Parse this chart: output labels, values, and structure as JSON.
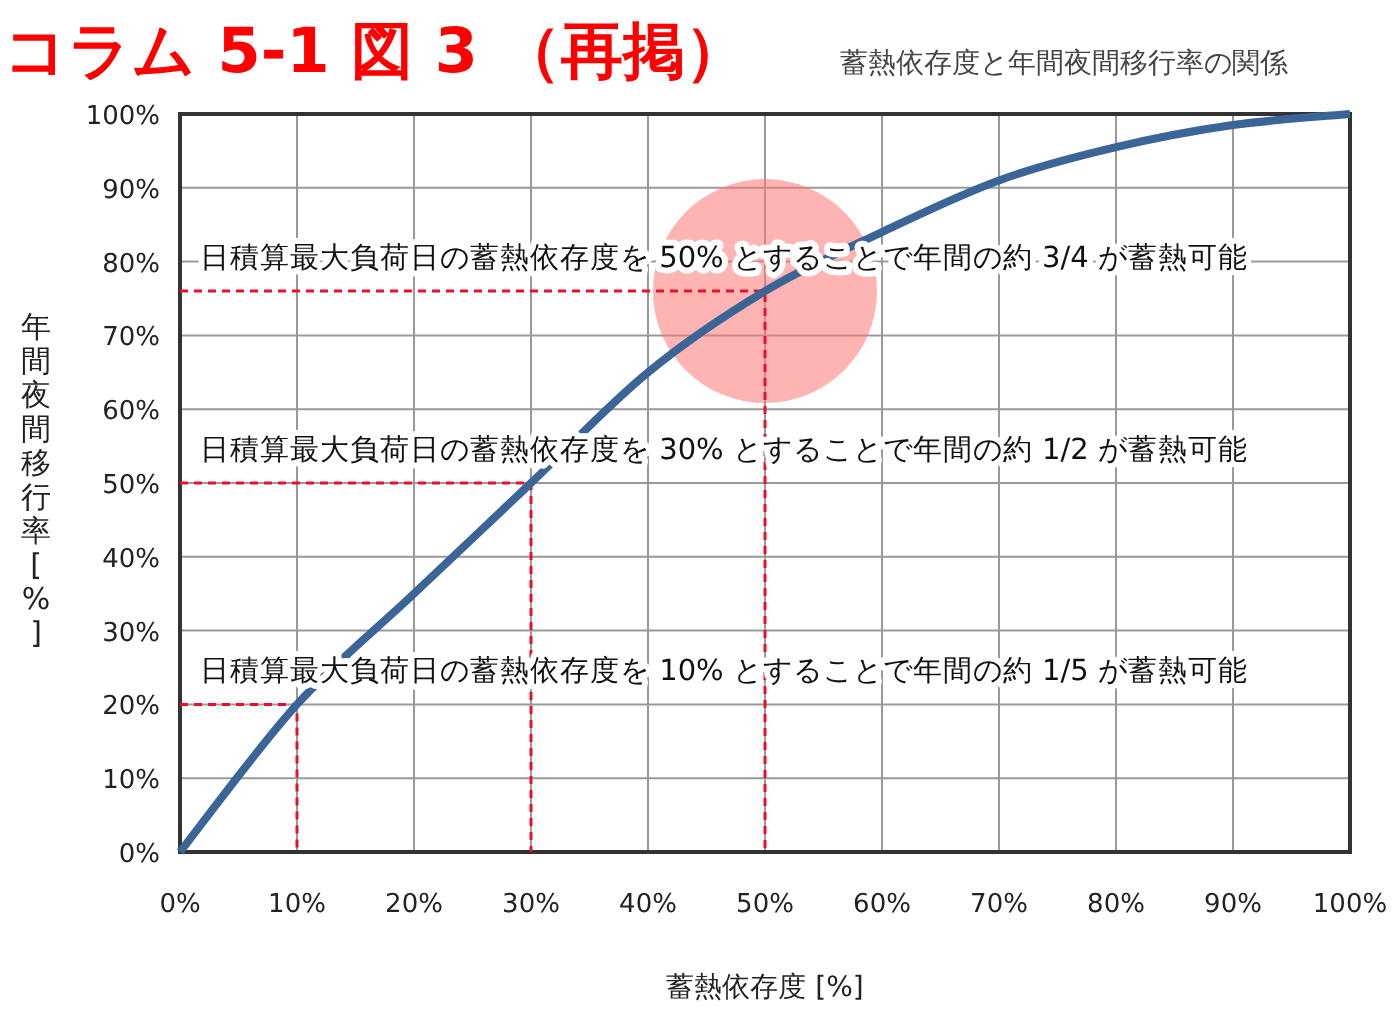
{
  "chart_data": {
    "type": "line",
    "title": "コラム 5-1 図 3 （再掲）",
    "subtitle": "蓄熱依存度と年間夜間移行率の関係",
    "xlabel": "蓄熱依存度 [%]",
    "ylabel": "年間夜間移行率 [%]",
    "x": [
      0,
      10,
      20,
      30,
      40,
      50,
      60,
      70,
      80,
      90,
      100
    ],
    "series": [
      {
        "color": "#3a6596",
        "values": [
          0,
          20,
          35,
          50,
          65,
          76,
          84,
          91,
          95.5,
          98.5,
          100
        ]
      }
    ],
    "xlim": [
      0,
      100
    ],
    "ylim": [
      0,
      100
    ],
    "xticks": [
      {
        "value": 0,
        "label": "0%"
      },
      {
        "value": 10,
        "label": "10%"
      },
      {
        "value": 20,
        "label": "20%"
      },
      {
        "value": 30,
        "label": "30%"
      },
      {
        "value": 40,
        "label": "40%"
      },
      {
        "value": 50,
        "label": "50%"
      },
      {
        "value": 60,
        "label": "60%"
      },
      {
        "value": 70,
        "label": "70%"
      },
      {
        "value": 80,
        "label": "80%"
      },
      {
        "value": 90,
        "label": "90%"
      },
      {
        "value": 100,
        "label": "100%"
      }
    ],
    "yticks": [
      {
        "value": 0,
        "label": "0%"
      },
      {
        "value": 10,
        "label": "10%"
      },
      {
        "value": 20,
        "label": "20%"
      },
      {
        "value": 30,
        "label": "30%"
      },
      {
        "value": 40,
        "label": "40%"
      },
      {
        "value": 50,
        "label": "50%"
      },
      {
        "value": 60,
        "label": "60%"
      },
      {
        "value": 70,
        "label": "70%"
      },
      {
        "value": 80,
        "label": "80%"
      },
      {
        "value": 90,
        "label": "90%"
      },
      {
        "value": 100,
        "label": "100%"
      }
    ],
    "grid": true,
    "marker": "none",
    "line_style": "solid",
    "annotations": [
      {
        "text": "日積算最大負荷日の蓄熱依存度を 50% とすることで年間の約 3/4 が蓄熱可能",
        "x": 50,
        "y": 76
      },
      {
        "text": "日積算最大負荷日の蓄熱依存度を 30% とすることで年間の約 1/2 が蓄熱可能",
        "x": 30,
        "y": 50
      },
      {
        "text": "日積算最大負荷日の蓄熱依存度を 10% とすることで年間の約 1/5 が蓄熱可能",
        "x": 10,
        "y": 20
      }
    ]
  }
}
